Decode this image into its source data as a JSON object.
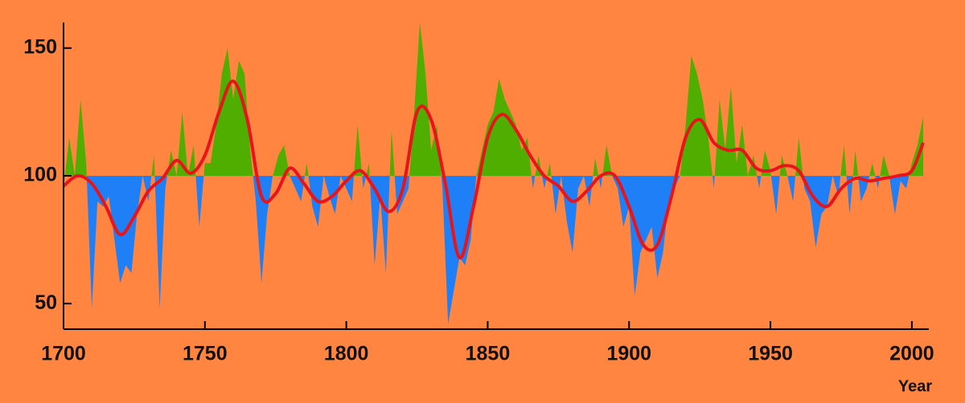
{
  "chart_data": {
    "type": "area",
    "x_label": "Year",
    "baseline": 100,
    "above_color": "#4fae00",
    "below_color": "#1f7ff7",
    "background": "#ff8540",
    "xlim": [
      1700,
      2006
    ],
    "ylim": [
      40,
      160
    ],
    "xticks": [
      1700,
      1750,
      1800,
      1850,
      1900,
      1950,
      2000
    ],
    "yticks": [
      50,
      100,
      150
    ],
    "x": [
      1700,
      1702,
      1704,
      1706,
      1708,
      1710,
      1712,
      1714,
      1716,
      1718,
      1720,
      1722,
      1724,
      1726,
      1728,
      1730,
      1732,
      1734,
      1736,
      1738,
      1740,
      1742,
      1744,
      1746,
      1748,
      1750,
      1752,
      1754,
      1756,
      1758,
      1760,
      1762,
      1764,
      1766,
      1768,
      1770,
      1772,
      1774,
      1776,
      1778,
      1780,
      1782,
      1784,
      1786,
      1788,
      1790,
      1792,
      1794,
      1796,
      1798,
      1800,
      1802,
      1804,
      1806,
      1808,
      1810,
      1812,
      1814,
      1816,
      1818,
      1820,
      1822,
      1824,
      1826,
      1828,
      1830,
      1832,
      1834,
      1836,
      1838,
      1840,
      1842,
      1844,
      1846,
      1848,
      1850,
      1852,
      1854,
      1856,
      1858,
      1860,
      1862,
      1864,
      1866,
      1868,
      1870,
      1872,
      1874,
      1876,
      1878,
      1880,
      1882,
      1884,
      1886,
      1888,
      1890,
      1892,
      1894,
      1896,
      1898,
      1900,
      1902,
      1904,
      1906,
      1908,
      1910,
      1912,
      1914,
      1916,
      1918,
      1920,
      1922,
      1924,
      1926,
      1928,
      1930,
      1932,
      1934,
      1936,
      1938,
      1940,
      1942,
      1944,
      1946,
      1948,
      1950,
      1952,
      1954,
      1956,
      1958,
      1960,
      1962,
      1964,
      1966,
      1968,
      1970,
      1972,
      1974,
      1976,
      1978,
      1980,
      1982,
      1984,
      1986,
      1988,
      1990,
      1992,
      1994,
      1996,
      1998,
      2000,
      2002,
      2004
    ],
    "values": [
      95,
      115,
      100,
      130,
      105,
      48,
      90,
      88,
      92,
      75,
      58,
      65,
      62,
      85,
      100,
      90,
      108,
      48,
      95,
      110,
      100,
      125,
      100,
      112,
      80,
      105,
      105,
      120,
      140,
      150,
      130,
      145,
      140,
      110,
      90,
      58,
      85,
      100,
      108,
      112,
      100,
      95,
      90,
      105,
      88,
      80,
      100,
      92,
      85,
      100,
      95,
      90,
      120,
      95,
      105,
      65,
      92,
      62,
      118,
      85,
      90,
      95,
      125,
      160,
      140,
      110,
      120,
      95,
      42,
      55,
      68,
      65,
      75,
      100,
      110,
      120,
      125,
      138,
      130,
      125,
      120,
      110,
      115,
      95,
      108,
      95,
      105,
      85,
      100,
      82,
      70,
      95,
      100,
      88,
      107,
      95,
      112,
      100,
      95,
      80,
      88,
      53,
      70,
      75,
      80,
      60,
      70,
      90,
      95,
      100,
      120,
      147,
      140,
      130,
      115,
      95,
      130,
      110,
      135,
      105,
      120,
      100,
      108,
      95,
      110,
      102,
      85,
      108,
      100,
      90,
      115,
      95,
      90,
      72,
      85,
      88,
      100,
      92,
      112,
      85,
      110,
      90,
      95,
      105,
      95,
      108,
      100,
      85,
      98,
      95,
      105,
      112,
      123
    ],
    "smooth": {
      "color": "#e8141c",
      "x": [
        1700,
        1705,
        1710,
        1715,
        1720,
        1725,
        1730,
        1735,
        1740,
        1745,
        1750,
        1755,
        1760,
        1765,
        1770,
        1775,
        1780,
        1785,
        1790,
        1795,
        1800,
        1805,
        1810,
        1815,
        1820,
        1825,
        1830,
        1835,
        1840,
        1845,
        1850,
        1855,
        1860,
        1865,
        1870,
        1875,
        1880,
        1885,
        1890,
        1895,
        1900,
        1905,
        1910,
        1915,
        1920,
        1925,
        1930,
        1935,
        1940,
        1945,
        1950,
        1955,
        1960,
        1965,
        1970,
        1975,
        1980,
        1985,
        1990,
        1995,
        2000,
        2004
      ],
      "values": [
        96,
        100,
        97,
        88,
        77,
        84,
        94,
        99,
        106,
        101,
        108,
        125,
        137,
        122,
        92,
        93,
        103,
        97,
        90,
        92,
        98,
        102,
        95,
        86,
        95,
        125,
        122,
        97,
        68,
        88,
        115,
        124,
        118,
        108,
        100,
        96,
        90,
        94,
        100,
        100,
        88,
        73,
        73,
        92,
        115,
        122,
        113,
        110,
        110,
        103,
        102,
        104,
        102,
        92,
        88,
        95,
        99,
        98,
        99,
        100,
        102,
        113
      ]
    }
  }
}
